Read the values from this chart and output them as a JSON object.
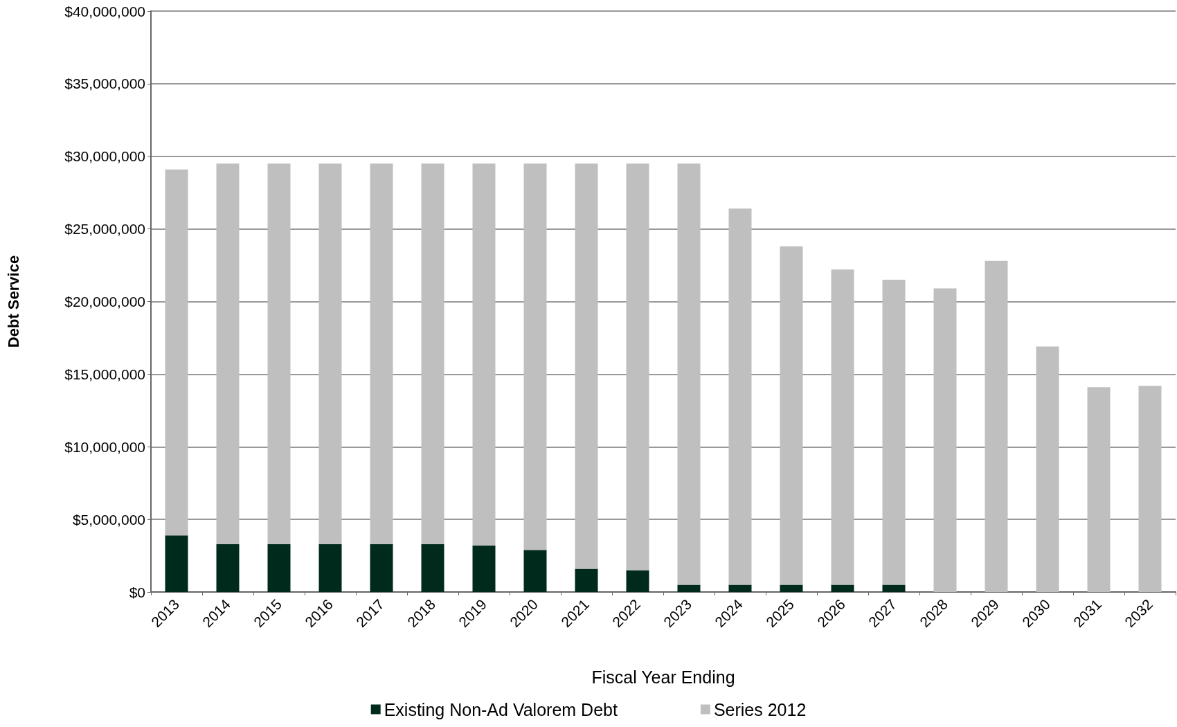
{
  "chart_data": {
    "type": "bar",
    "stacked": true,
    "xlabel": "Fiscal Year Ending",
    "ylabel": "Debt Service",
    "categories": [
      "2013",
      "2014",
      "2015",
      "2016",
      "2017",
      "2018",
      "2019",
      "2020",
      "2021",
      "2022",
      "2023",
      "2024",
      "2025",
      "2026",
      "2027",
      "2028",
      "2029",
      "2030",
      "2031",
      "2032"
    ],
    "series": [
      {
        "name": "Existing Non-Ad Valorem Debt",
        "color": "#002b1c",
        "values": [
          3900000,
          3300000,
          3300000,
          3300000,
          3300000,
          3300000,
          3200000,
          2900000,
          1600000,
          1500000,
          500000,
          500000,
          500000,
          500000,
          500000,
          0,
          0,
          0,
          0,
          0
        ]
      },
      {
        "name": "Series 2012",
        "color": "#bfbfbf",
        "values": [
          25200000,
          26200000,
          26200000,
          26200000,
          26200000,
          26200000,
          26300000,
          26600000,
          27900000,
          28000000,
          29000000,
          25900000,
          23300000,
          21700000,
          21000000,
          20900000,
          22800000,
          16900000,
          14100000,
          14200000
        ]
      }
    ],
    "ylim": [
      0,
      40000000
    ],
    "yticks": [
      {
        "value": 0,
        "label": "$0"
      },
      {
        "value": 5000000,
        "label": "$5,000,000"
      },
      {
        "value": 10000000,
        "label": "$10,000,000"
      },
      {
        "value": 15000000,
        "label": "$15,000,000"
      },
      {
        "value": 20000000,
        "label": "$20,000,000"
      },
      {
        "value": 25000000,
        "label": "$25,000,000"
      },
      {
        "value": 30000000,
        "label": "$30,000,000"
      },
      {
        "value": 35000000,
        "label": "$35,000,000"
      },
      {
        "value": 40000000,
        "label": "$40,000,000"
      }
    ],
    "grid": "y",
    "legend": "bottom"
  }
}
